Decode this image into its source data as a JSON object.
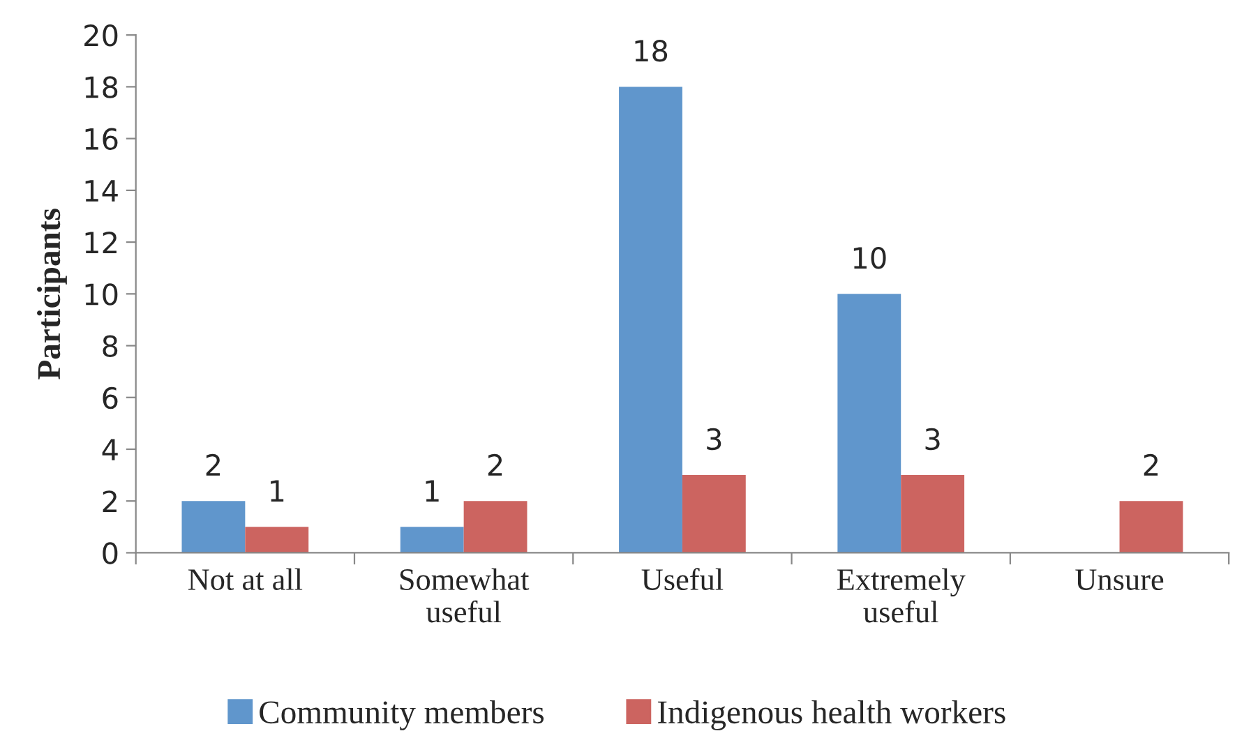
{
  "chart_data": {
    "type": "bar",
    "ylabel": "Participants",
    "categories": [
      "Not at all",
      "Somewhat\nuseful",
      "Useful",
      "Extremely\nuseful",
      "Unsure"
    ],
    "series": [
      {
        "name": "Community members",
        "color": "#6096cc",
        "values": [
          2,
          1,
          18,
          10,
          0
        ],
        "value_labels": [
          "2",
          "1",
          "18",
          "10",
          null
        ]
      },
      {
        "name": "Indigenous health workers",
        "color": "#cc6460",
        "values": [
          1,
          2,
          3,
          3,
          2
        ],
        "value_labels": [
          "1",
          "2",
          "3",
          "3",
          "2"
        ]
      }
    ],
    "ylim": [
      0,
      20
    ],
    "yticks": [
      0,
      2,
      4,
      6,
      8,
      10,
      12,
      14,
      16,
      18,
      20
    ],
    "grid": false,
    "legend": "bottom"
  }
}
